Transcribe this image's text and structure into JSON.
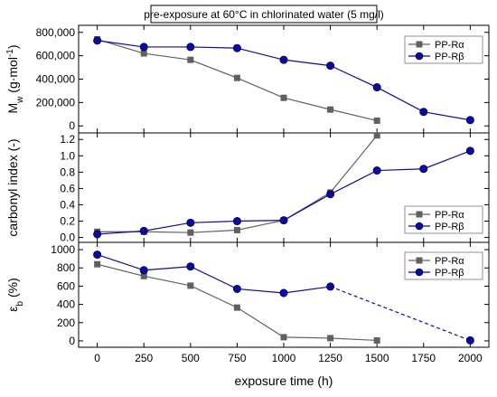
{
  "title": "pre-exposure at 60°C in chlorinated water (5 mg/l)",
  "xlabel": "exposure time (h)",
  "colors": {
    "alpha": "#606060",
    "beta": "#0a0aa8"
  },
  "chart_data": [
    {
      "type": "line",
      "ylabel_main": "M",
      "ylabel_sub": "w",
      "ylabel_unit": " (g·mol",
      "ylabel_sup": "-1",
      "ylabel_close": ")",
      "xlim": [
        -100,
        2100
      ],
      "ylim": [
        -60000,
        860000
      ],
      "yticks": [
        0,
        200000,
        400000,
        600000,
        800000
      ],
      "ytick_labels": [
        "0",
        "200,000",
        "400,000",
        "600,000",
        "800,000"
      ],
      "legend": "top-right",
      "series": [
        {
          "name": "PP-Rα",
          "marker": "square",
          "x": [
            0,
            250,
            500,
            750,
            1000,
            1250,
            1500
          ],
          "y": [
            740000,
            620000,
            565000,
            410000,
            240000,
            140000,
            45000
          ]
        },
        {
          "name": "PP-Rβ",
          "marker": "circle",
          "x": [
            0,
            250,
            500,
            750,
            1000,
            1250,
            1500,
            1750,
            2000
          ],
          "y": [
            730000,
            675000,
            675000,
            665000,
            565000,
            515000,
            330000,
            120000,
            50000
          ]
        }
      ]
    },
    {
      "type": "line",
      "ylabel_main": "carbonyl index (-)",
      "xlim": [
        -100,
        2100
      ],
      "ylim": [
        -0.06,
        1.28
      ],
      "yticks": [
        0.0,
        0.2,
        0.4,
        0.6,
        0.8,
        1.0,
        1.2
      ],
      "ytick_labels": [
        "0.0",
        "0.2",
        "0.4",
        "0.6",
        "0.8",
        "1.0",
        "1.2"
      ],
      "legend": "bottom-right",
      "series": [
        {
          "name": "PP-Rα",
          "marker": "square",
          "x": [
            0,
            250,
            500,
            750,
            1000,
            1250,
            1500
          ],
          "y": [
            0.07,
            0.07,
            0.06,
            0.09,
            0.21,
            0.55,
            1.25
          ]
        },
        {
          "name": "PP-Rβ",
          "marker": "circle",
          "x": [
            0,
            250,
            500,
            750,
            1000,
            1250,
            1500,
            1750,
            2000
          ],
          "y": [
            0.04,
            0.08,
            0.18,
            0.2,
            0.21,
            0.53,
            0.82,
            0.84,
            1.06
          ]
        }
      ]
    },
    {
      "type": "line",
      "ylabel_main": "ε",
      "ylabel_sub": "b",
      "ylabel_unit": " (%)",
      "xlim": [
        -100,
        2100
      ],
      "ylim": [
        -70,
        1080
      ],
      "yticks": [
        0,
        200,
        400,
        600,
        800,
        1000
      ],
      "ytick_labels": [
        "0",
        "200",
        "400",
        "600",
        "800",
        "1000"
      ],
      "legend": "top-right",
      "series": [
        {
          "name": "PP-Rα",
          "marker": "square",
          "x": [
            0,
            250,
            500,
            750,
            1000,
            1250,
            1500
          ],
          "y": [
            840,
            710,
            605,
            365,
            40,
            30,
            5
          ]
        },
        {
          "name": "PP-Rβ",
          "marker": "circle",
          "x": [
            0,
            250,
            500,
            750,
            1000,
            1250,
            2000
          ],
          "y": [
            945,
            775,
            815,
            570,
            525,
            595,
            5
          ],
          "dashed_from_index": 5
        }
      ]
    }
  ],
  "xaxis": {
    "ticks": [
      0,
      250,
      500,
      750,
      1000,
      1250,
      1500,
      1750,
      2000
    ],
    "tick_labels": [
      "0",
      "250",
      "500",
      "750",
      "1000",
      "1250",
      "1500",
      "1750",
      "2000"
    ]
  }
}
